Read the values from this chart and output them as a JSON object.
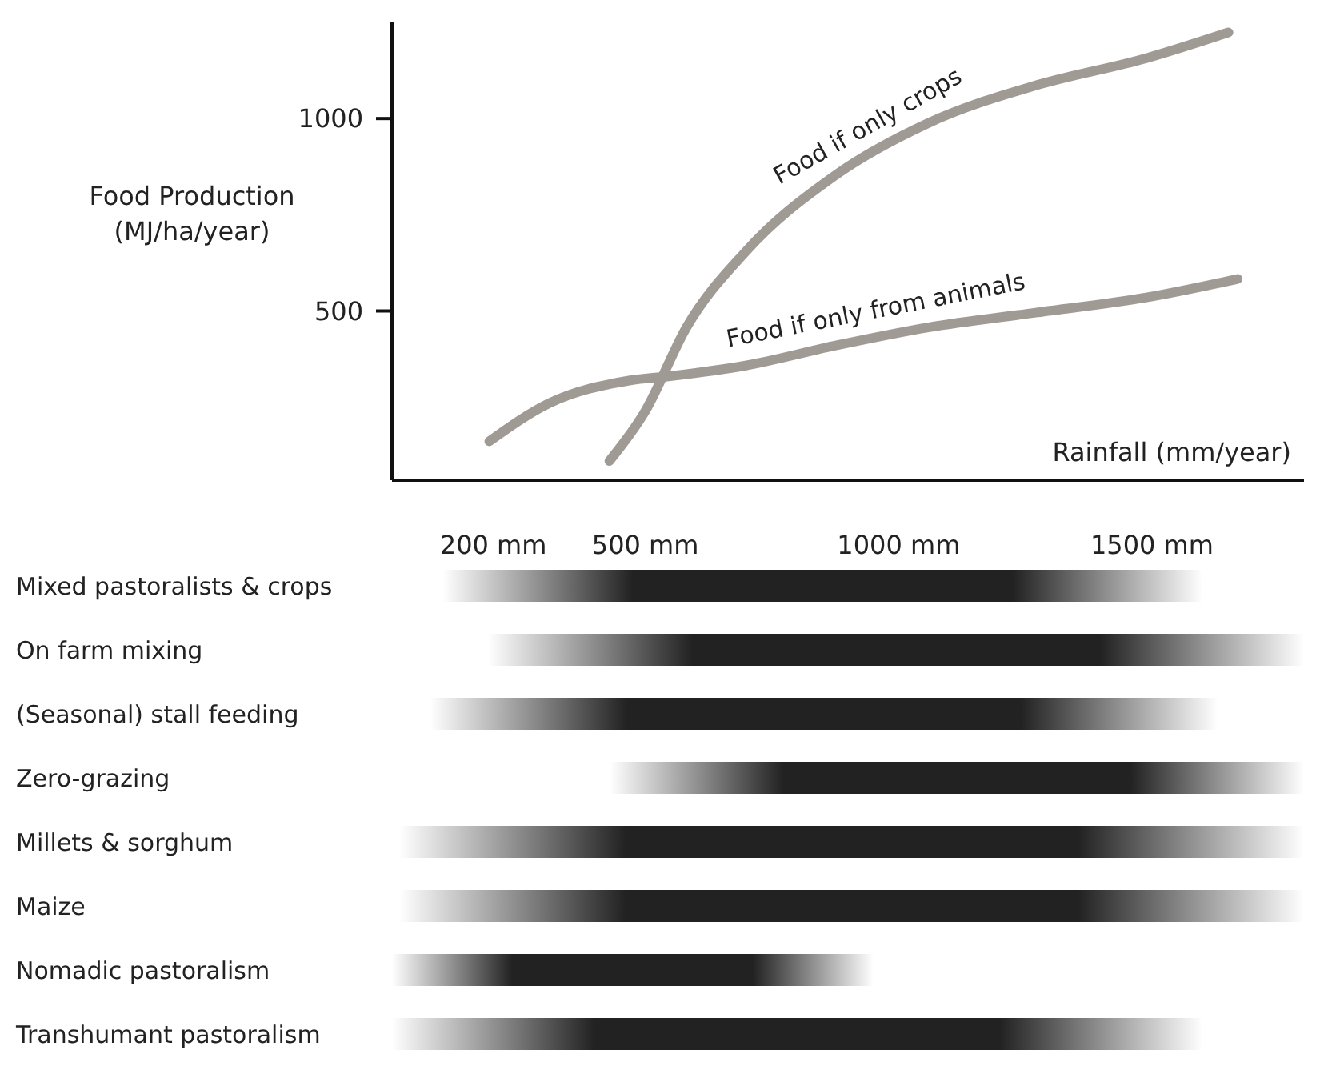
{
  "chart_data": [
    {
      "type": "line",
      "xlabel": "Rainfall (mm/year)",
      "ylabel": "Food Production\n(MJ/ha/year)",
      "xlim": [
        0,
        1800
      ],
      "xticks": [
        {
          "value": 200,
          "label": "200 mm"
        },
        {
          "value": 500,
          "label": "500 mm"
        },
        {
          "value": 1000,
          "label": "1000 mm"
        },
        {
          "value": 1500,
          "label": "1500 mm"
        }
      ],
      "ylim": [
        60,
        1250
      ],
      "yticks": [
        500,
        1000
      ],
      "grid": false,
      "line_style": "solid",
      "marker": "none",
      "series": [
        {
          "name": "Food if only crops",
          "color": "#a09a94",
          "x": [
            429,
            500,
            581,
            698,
            872,
            1058,
            1273,
            1489,
            1651
          ],
          "values": [
            110,
            240,
            457,
            654,
            850,
            988,
            1087,
            1157,
            1224
          ]
        },
        {
          "name": "Food if only from animals",
          "color": "#a09a94",
          "x": [
            192,
            310,
            468,
            552,
            698,
            872,
            1058,
            1273,
            1489,
            1669
          ],
          "values": [
            161,
            260,
            319,
            331,
            358,
            409,
            457,
            496,
            535,
            583
          ]
        }
      ]
    },
    {
      "type": "bar",
      "orientation": "horizontal",
      "xlim": [
        0,
        1800
      ],
      "tick_labels": "y",
      "color": "#222222",
      "categories": [
        "Mixed pastoralists & crops",
        "On farm mixing",
        "(Seasonal) stall feeding",
        "Zero-grazing",
        "Millets & sorghum",
        "Maize",
        "Nomadic pastoralism",
        "Transhumant pastoralism"
      ],
      "base": [
        100,
        190,
        75,
        430,
        15,
        15,
        0,
        0
      ],
      "values": [
        1500,
        1610,
        1555,
        1370,
        1785,
        1785,
        950,
        1600
      ]
    }
  ]
}
